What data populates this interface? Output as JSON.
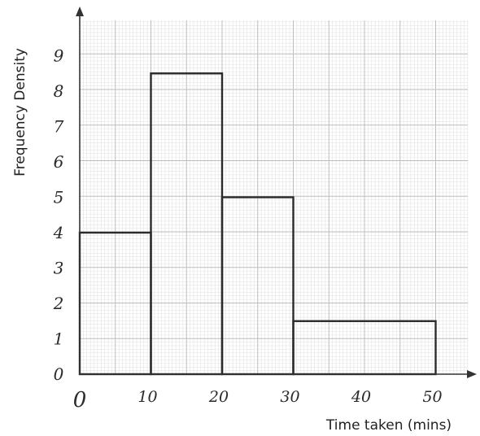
{
  "chart_data": {
    "type": "bar",
    "xlabel": "Time taken (mins)",
    "ylabel": "Frequency Density",
    "bins": [
      {
        "from": 0,
        "to": 10,
        "density": 4
      },
      {
        "from": 10,
        "to": 20,
        "density": 8.5
      },
      {
        "from": 20,
        "to": 30,
        "density": 5
      },
      {
        "from": 30,
        "to": 50,
        "density": 1.5
      }
    ],
    "x_ticks": [
      "0",
      "10",
      "20",
      "30",
      "40",
      "50"
    ],
    "x_tick_values": [
      0,
      10,
      20,
      30,
      40,
      50
    ],
    "y_ticks": [
      "0",
      "1",
      "2",
      "3",
      "4",
      "5",
      "6",
      "7",
      "8",
      "9"
    ],
    "y_tick_values": [
      0,
      1,
      2,
      3,
      4,
      5,
      6,
      7,
      8,
      9
    ],
    "xlim": [
      0,
      55
    ],
    "ylim": [
      0,
      10
    ],
    "grid": true
  }
}
